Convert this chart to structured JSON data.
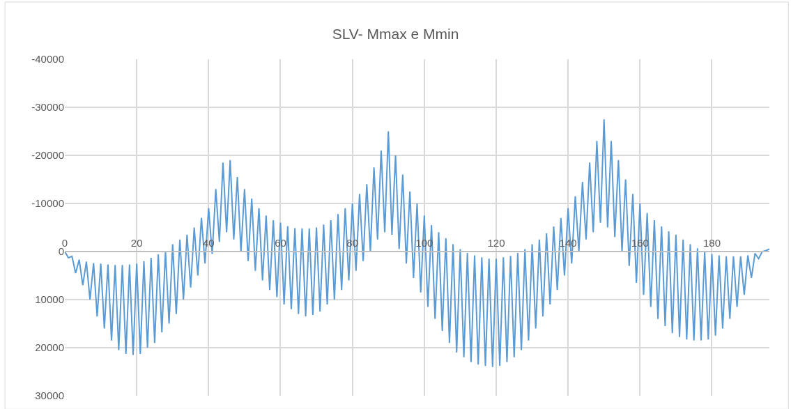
{
  "chart_data": {
    "type": "line",
    "title": "SLV- Mmax e Mmin",
    "x": [
      0,
      1,
      2,
      3,
      4,
      5,
      6,
      7,
      8,
      9,
      10,
      11,
      12,
      13,
      14,
      15,
      16,
      17,
      18,
      19,
      20,
      21,
      22,
      23,
      24,
      25,
      26,
      27,
      28,
      29,
      30,
      31,
      32,
      33,
      34,
      35,
      36,
      37,
      38,
      39,
      40,
      41,
      42,
      43,
      44,
      45,
      46,
      47,
      48,
      49,
      50,
      51,
      52,
      53,
      54,
      55,
      56,
      57,
      58,
      59,
      60,
      61,
      62,
      63,
      64,
      65,
      66,
      67,
      68,
      69,
      70,
      71,
      72,
      73,
      74,
      75,
      76,
      77,
      78,
      79,
      80,
      81,
      82,
      83,
      84,
      85,
      86,
      87,
      88,
      89,
      90,
      91,
      92,
      93,
      94,
      95,
      96,
      97,
      98,
      99,
      100,
      101,
      102,
      103,
      104,
      105,
      106,
      107,
      108,
      109,
      110,
      111,
      112,
      113,
      114,
      115,
      116,
      117,
      118,
      119,
      120,
      121,
      122,
      123,
      124,
      125,
      126,
      127,
      128,
      129,
      130,
      131,
      132,
      133,
      134,
      135,
      136,
      137,
      138,
      139,
      140,
      141,
      142,
      143,
      144,
      145,
      146,
      147,
      148,
      149,
      150,
      151,
      152,
      153,
      154,
      155,
      156,
      157,
      158,
      159,
      160,
      161,
      162,
      163,
      164,
      165,
      166,
      167,
      168,
      169,
      170,
      171,
      172,
      173,
      174,
      175,
      176,
      177,
      178,
      179,
      180,
      181,
      182,
      183,
      184,
      185,
      186,
      187,
      188,
      189,
      190,
      191,
      192,
      193,
      194,
      195,
      196
    ],
    "series": [
      {
        "color": "#5b9bd5",
        "values": [
          0,
          1300,
          1000,
          4500,
          1700,
          7000,
          2100,
          10000,
          2400,
          13500,
          2500,
          16000,
          2700,
          18500,
          2800,
          20500,
          2800,
          21300,
          2700,
          21500,
          2500,
          21300,
          2000,
          20000,
          1300,
          19000,
          600,
          16800,
          0,
          15000,
          -1500,
          13000,
          -2500,
          10000,
          -3500,
          7500,
          -5000,
          5000,
          -7000,
          2500,
          -9000,
          500,
          -13000,
          -2000,
          -18500,
          -4000,
          -19000,
          -2500,
          -15500,
          0,
          -13000,
          2000,
          -11000,
          4000,
          -9000,
          6000,
          -7500,
          8000,
          -6500,
          9500,
          -6000,
          11000,
          -5300,
          12000,
          -4900,
          13000,
          -4800,
          13500,
          -4800,
          13200,
          -5000,
          12500,
          -5600,
          11000,
          -6500,
          10000,
          -7800,
          8000,
          -9000,
          6000,
          -10000,
          4000,
          -12000,
          2000,
          -14000,
          0,
          -17500,
          -2500,
          -21000,
          -4000,
          -25000,
          -3500,
          -20000,
          -500,
          -16000,
          2500,
          -12500,
          5500,
          -10000,
          8500,
          -7500,
          11500,
          -5500,
          14000,
          -4000,
          16500,
          -2800,
          19000,
          -1500,
          21000,
          -500,
          22000,
          300,
          23000,
          800,
          23500,
          1200,
          23800,
          1500,
          24000,
          1500,
          23800,
          1200,
          23000,
          900,
          22000,
          300,
          20500,
          -500,
          18500,
          -1500,
          16000,
          -2500,
          13500,
          -3800,
          11000,
          -5200,
          8000,
          -7000,
          5000,
          -9000,
          2500,
          -11500,
          0,
          -14500,
          -2500,
          -18500,
          -4000,
          -23000,
          -6000,
          -27500,
          -5000,
          -23000,
          -3000,
          -19000,
          0,
          -15000,
          3000,
          -12000,
          6500,
          -10000,
          9000,
          -8000,
          11500,
          -6500,
          14000,
          -5200,
          15500,
          -4200,
          17000,
          -3500,
          17800,
          -2500,
          18300,
          -1500,
          18500,
          -700,
          18500,
          0,
          18300,
          500,
          17500,
          800,
          16000,
          1000,
          14000,
          1000,
          11500,
          1000,
          9000,
          800,
          5500,
          400,
          1500,
          0,
          -200,
          -500
        ]
      }
    ],
    "xlim": [
      0,
      196
    ],
    "xticks": [
      0,
      20,
      40,
      60,
      80,
      100,
      120,
      140,
      160,
      180
    ],
    "ylim": [
      30000,
      -40000
    ],
    "yticks": [
      -40000,
      -30000,
      -20000,
      -10000,
      0,
      10000,
      20000,
      30000
    ],
    "grid": true,
    "marker": "none",
    "line_style": "solid"
  }
}
